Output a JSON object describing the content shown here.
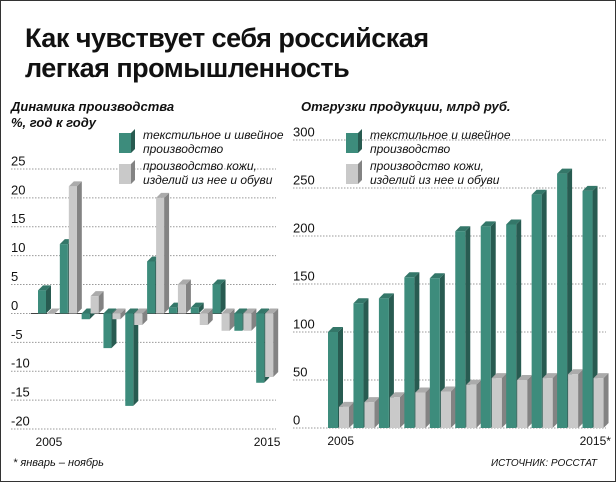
{
  "header": {
    "title": "Как чувствует себя российская легкая промышленность"
  },
  "chart_data": [
    {
      "type": "bar3d",
      "title": "Динамика производства",
      "y_label": "%, год к году",
      "categories": [
        "2005",
        null,
        null,
        null,
        null,
        null,
        null,
        null,
        null,
        null,
        "2015"
      ],
      "series": [
        {
          "name": "текстильное и швейное производство",
          "color": "#3d8c7c",
          "values": [
            4,
            12,
            -1,
            -6,
            -16,
            9,
            1,
            1,
            5,
            -3,
            -12
          ]
        },
        {
          "name": "производство кожи, изделий из нее и обуви",
          "color": "#c9c9c9",
          "values": [
            0,
            22,
            3,
            -1,
            -2,
            20,
            5,
            -2,
            -3,
            -3,
            -11
          ]
        }
      ],
      "ylim": [
        -20,
        25
      ],
      "yticks": [
        -20,
        -15,
        -10,
        -5,
        0,
        5,
        10,
        15,
        20,
        25
      ],
      "grid": true
    },
    {
      "type": "bar3d",
      "title": "Отгрузки продукции, млрд руб.",
      "categories": [
        "2005",
        null,
        null,
        null,
        null,
        null,
        null,
        null,
        null,
        null,
        "2015*"
      ],
      "series": [
        {
          "name": "текстильное и швейное производство",
          "color": "#3d8c7c",
          "values": [
            100,
            130,
            135,
            157,
            156,
            205,
            210,
            212,
            243,
            265,
            247
          ]
        },
        {
          "name": "производство кожи, изделий из нее и обуви",
          "color": "#c9c9c9",
          "values": [
            22,
            27,
            32,
            37,
            38,
            45,
            52,
            50,
            52,
            56,
            52
          ]
        }
      ],
      "ylim": [
        0,
        300
      ],
      "yticks": [
        0,
        50,
        100,
        150,
        200,
        250,
        300
      ],
      "grid": true
    }
  ],
  "footnote": "* январь – ноябрь",
  "source": "ИСТОЧНИК: РОССТАТ"
}
